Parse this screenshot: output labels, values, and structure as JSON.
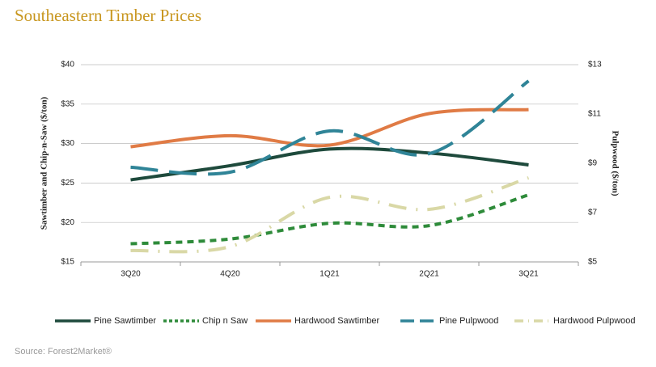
{
  "chart_data": {
    "type": "line",
    "title": "Southeastern Timber Prices",
    "y_label": "Sawtimber and Chip-n-Saw ($/ton)",
    "y2_label": "Pulpwood ($/ton)",
    "source": "Source: Forest2Market®",
    "categories": [
      "3Q20",
      "4Q20",
      "1Q21",
      "2Q21",
      "3Q21"
    ],
    "ylim": [
      15,
      40
    ],
    "yticks": [
      {
        "value": 15,
        "label": "$15"
      },
      {
        "value": 20,
        "label": "$20"
      },
      {
        "value": 25,
        "label": "$25"
      },
      {
        "value": 30,
        "label": "$30"
      },
      {
        "value": 35,
        "label": "$35"
      },
      {
        "value": 40,
        "label": "$40"
      }
    ],
    "y2lim": [
      5,
      13
    ],
    "y2ticks": [
      {
        "value": 5,
        "label": "$5"
      },
      {
        "value": 7,
        "label": "$7"
      },
      {
        "value": 9,
        "label": "$9"
      },
      {
        "value": 11,
        "label": "$11"
      },
      {
        "value": 13,
        "label": "$13"
      }
    ],
    "grid": true,
    "legend": "bottom",
    "series": [
      {
        "name": "Pine Sawtimber",
        "color": "#1e4a3c",
        "dash": "solid",
        "values": [
          25.4,
          27.2,
          29.3,
          28.8,
          27.3
        ]
      },
      {
        "name": "Chip n Saw",
        "color": "#2e8b3a",
        "dash": "dashed",
        "values": [
          17.3,
          17.9,
          19.9,
          19.6,
          23.5
        ]
      },
      {
        "name": "Hardwood Sawtimber",
        "color": "#e07b45",
        "dash": "solid",
        "values": [
          29.6,
          31.0,
          29.8,
          33.8,
          34.3
        ]
      },
      {
        "name": "Pine Pulpwood",
        "color": "#2f8497",
        "dash": "longdash",
        "axis": "y2",
        "values": [
          8.84,
          8.64,
          10.31,
          9.39,
          12.34
        ]
      },
      {
        "name": "Hardwood Pulpwood",
        "color": "#d9d8a6",
        "dash": "dashdot",
        "axis": "y2",
        "values": [
          5.46,
          5.62,
          7.62,
          7.13,
          8.41
        ]
      }
    ]
  }
}
